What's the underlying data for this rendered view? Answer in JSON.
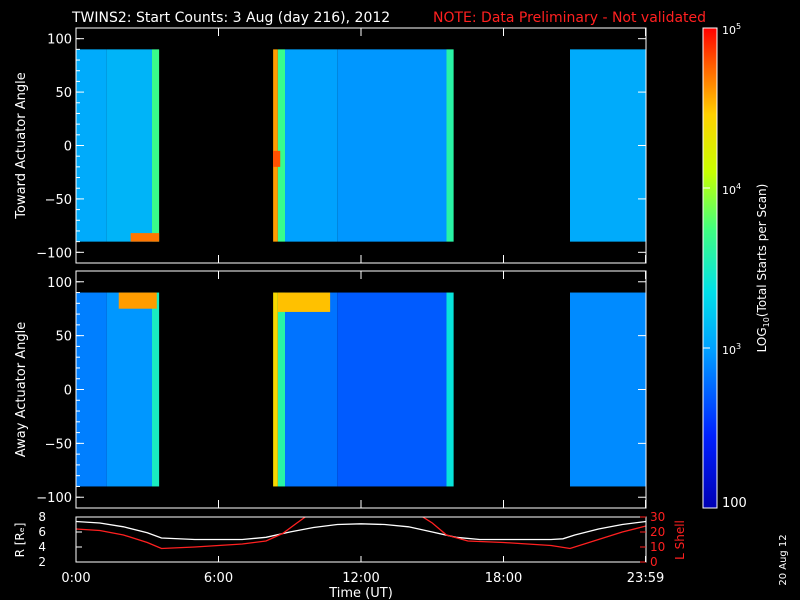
{
  "header": {
    "title": "TWINS2: Start Counts:  3 Aug (day 216), 2012",
    "note": "NOTE: Data Preliminary - Not validated",
    "note_color": "#ff2020"
  },
  "side_date": "20 Aug 12",
  "colors": {
    "background": "#000000",
    "axes": "#ffffff",
    "lshell": "#ff2020",
    "radius": "#ffffff"
  },
  "chart_data": [
    {
      "type": "heatmap",
      "title": "",
      "ylabel": "Toward Actuator Angle",
      "ylim": [
        -110,
        110
      ],
      "data_ylim": [
        -90,
        90
      ],
      "yticks": [
        100,
        50,
        0,
        -50,
        -100
      ],
      "ytick_labels": [
        "100",
        "50",
        "0",
        "−50",
        "−100"
      ],
      "xlim_hours": [
        0,
        24
      ],
      "data_blocks_hours": [
        [
          0.0,
          3.5
        ],
        [
          8.3,
          15.9
        ],
        [
          20.8,
          23.98
        ]
      ],
      "colorscale": "log10 counts, 100 to 100000",
      "bands": [
        {
          "hours": [
            0.0,
            1.3
          ],
          "log_counts": 3.05
        },
        {
          "hours": [
            1.3,
            3.2
          ],
          "log_counts": 3.1
        },
        {
          "hours": [
            3.2,
            3.5
          ],
          "log_counts": 3.7
        },
        {
          "hours": [
            8.3,
            8.5
          ],
          "log_counts": 4.6
        },
        {
          "hours": [
            8.5,
            8.8
          ],
          "log_counts": 3.7
        },
        {
          "hours": [
            8.8,
            11.0
          ],
          "log_counts": 3.0
        },
        {
          "hours": [
            11.0,
            15.6
          ],
          "log_counts": 2.95
        },
        {
          "hours": [
            15.6,
            15.9
          ],
          "log_counts": 3.6
        },
        {
          "hours": [
            20.8,
            23.98
          ],
          "log_counts": 3.05
        }
      ],
      "hot_spots": [
        {
          "hours": [
            2.3,
            3.5
          ],
          "angle": [
            -90,
            -82
          ],
          "log_counts": 4.7
        },
        {
          "hours": [
            8.3,
            8.6
          ],
          "angle": [
            -20,
            -5
          ],
          "log_counts": 4.8
        }
      ]
    },
    {
      "type": "heatmap",
      "title": "",
      "ylabel": "Away Actuator Angle",
      "ylim": [
        -110,
        110
      ],
      "data_ylim": [
        -90,
        90
      ],
      "yticks": [
        100,
        50,
        0,
        -50,
        -100
      ],
      "ytick_labels": [
        "100",
        "50",
        "0",
        "−50",
        "−100"
      ],
      "xlim_hours": [
        0,
        24
      ],
      "data_blocks_hours": [
        [
          0.0,
          3.5
        ],
        [
          8.3,
          15.9
        ],
        [
          20.8,
          23.98
        ]
      ],
      "colorscale": "log10 counts, 100 to 100000",
      "bands": [
        {
          "hours": [
            0.0,
            1.3
          ],
          "log_counts": 2.85
        },
        {
          "hours": [
            1.3,
            3.2
          ],
          "log_counts": 2.95
        },
        {
          "hours": [
            3.2,
            3.5
          ],
          "log_counts": 3.5
        },
        {
          "hours": [
            8.3,
            8.5
          ],
          "log_counts": 4.4
        },
        {
          "hours": [
            8.5,
            8.8
          ],
          "log_counts": 3.6
        },
        {
          "hours": [
            8.8,
            11.0
          ],
          "log_counts": 2.8
        },
        {
          "hours": [
            11.0,
            15.6
          ],
          "log_counts": 2.7
        },
        {
          "hours": [
            15.6,
            15.9
          ],
          "log_counts": 3.4
        },
        {
          "hours": [
            20.8,
            23.98
          ],
          "log_counts": 2.9
        }
      ],
      "hot_spots": [
        {
          "hours": [
            1.8,
            3.4
          ],
          "angle": [
            75,
            90
          ],
          "log_counts": 4.6
        },
        {
          "hours": [
            8.5,
            10.7
          ],
          "angle": [
            72,
            90
          ],
          "log_counts": 4.5
        }
      ]
    },
    {
      "type": "line",
      "title": "",
      "xlabel": "Time (UT)",
      "ylabel": "R [Rₑ]",
      "ylim": [
        2,
        8
      ],
      "yticks": [
        2,
        4,
        6,
        8
      ],
      "ytick_labels": [
        "2",
        "4",
        "6",
        "8"
      ],
      "y2label": "L Shell",
      "y2lim": [
        0,
        30
      ],
      "y2ticks": [
        0,
        10,
        20,
        30
      ],
      "y2tick_labels": [
        "0",
        "10",
        "20",
        "30"
      ],
      "xlim_hours": [
        0,
        24
      ],
      "xticks_hours": [
        0,
        6,
        12,
        18,
        23.98
      ],
      "xtick_labels": [
        "0:00",
        "6:00",
        "12:00",
        "18:00",
        "23:59"
      ],
      "series": [
        {
          "name": "R",
          "axis": "left",
          "color": "#ffffff",
          "x": [
            0,
            1,
            2,
            3,
            3.6,
            5,
            6,
            7,
            8,
            9,
            10,
            11,
            12,
            13,
            14,
            15,
            16,
            17,
            18,
            19,
            20,
            20.5,
            21,
            22,
            23,
            24
          ],
          "y": [
            7.4,
            7.2,
            6.7,
            5.9,
            5.2,
            5.0,
            5.0,
            5.0,
            5.3,
            6.0,
            6.6,
            7.0,
            7.1,
            7.0,
            6.7,
            6.0,
            5.3,
            5.0,
            5.0,
            5.0,
            5.0,
            5.1,
            5.6,
            6.4,
            7.0,
            7.4
          ]
        },
        {
          "name": "L Shell",
          "axis": "right",
          "color": "#ff2020",
          "x": [
            0,
            1,
            2,
            3,
            3.6,
            5,
            6,
            7,
            8,
            8.7,
            9.3,
            10.0,
            14.2,
            15.0,
            15.6,
            16.5,
            18,
            20,
            20.8,
            22,
            23,
            24
          ],
          "y": [
            22,
            21,
            18,
            13,
            9,
            10,
            11,
            12,
            14,
            19,
            26,
            34,
            34,
            26,
            18,
            14,
            13,
            11,
            9,
            15,
            20,
            24
          ]
        }
      ]
    }
  ],
  "colorbar": {
    "label": "LOG",
    "label_sub": "10",
    "label_rest": "(Total Starts per Scan)",
    "min_log": 2,
    "max_log": 5,
    "tick_logs": [
      5,
      4,
      3
    ],
    "tick_bases": [
      "10",
      "10",
      "10"
    ],
    "tick_exps": [
      "5",
      "4",
      "3"
    ],
    "bottom_label": "100"
  }
}
